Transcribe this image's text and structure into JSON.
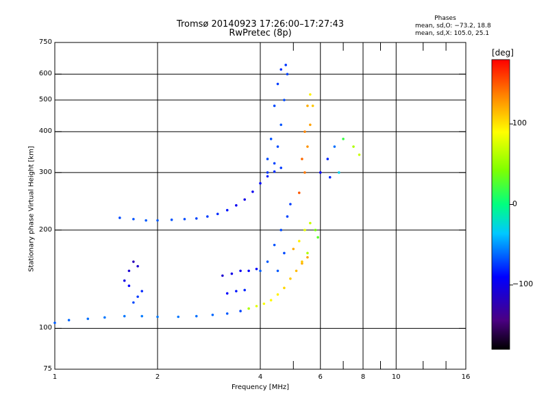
{
  "header": {
    "title_line1": "Tromsø 20140923 17:26:00–17:27:43",
    "title_line2": "RwPretec (8p)",
    "stats_heading": "Phases",
    "stats_line1": "mean, sd,O: −73.2, 18.8",
    "stats_line2": "mean, sd,X: 105.0, 25.1"
  },
  "colorbar": {
    "unit_label": "[deg]",
    "ticks": [
      "100",
      "0",
      "−100"
    ],
    "tick_values": [
      100,
      0,
      -100
    ],
    "range": [
      -180,
      180
    ],
    "colormap": "rainbow"
  },
  "chart_data": {
    "type": "scatter",
    "xlabel": "Frequency [MHz]",
    "ylabel": "Stationary phase Virtual Height [km]",
    "xscale": "log",
    "yscale": "log",
    "xlim": [
      1,
      16
    ],
    "ylim": [
      75,
      750
    ],
    "xticks": [
      "1",
      "2",
      "4",
      "6",
      "8",
      "10",
      "16"
    ],
    "xtick_values": [
      1,
      2,
      4,
      6,
      8,
      10,
      16
    ],
    "yticks": [
      "750",
      "600",
      "500",
      "400",
      "300",
      "200",
      "100",
      "75"
    ],
    "ytick_values": [
      750,
      600,
      500,
      400,
      300,
      200,
      100,
      75
    ],
    "grid_x": [
      2,
      4,
      6,
      8,
      10
    ],
    "grid_y": [
      100,
      200,
      300,
      400,
      500,
      600
    ],
    "minor_x": [
      5,
      7,
      9,
      12,
      14
    ],
    "minor_y": [
      75,
      750
    ],
    "traces": [
      {
        "name": "",
        "points": [
          [
            1.0,
            104
          ],
          [
            1.1,
            106
          ],
          [
            1.25,
            107
          ],
          [
            1.4,
            108
          ],
          [
            1.6,
            109
          ],
          [
            1.8,
            109
          ],
          [
            2.0,
            108.5
          ],
          [
            2.3,
            108.5
          ],
          [
            2.6,
            109
          ],
          [
            2.9,
            110
          ],
          [
            3.2,
            111
          ],
          [
            3.5,
            113
          ],
          [
            3.7,
            115
          ],
          [
            3.9,
            117
          ],
          [
            4.1,
            119
          ],
          [
            4.3,
            122
          ],
          [
            4.5,
            127
          ],
          [
            4.7,
            133
          ],
          [
            4.9,
            142
          ],
          [
            5.1,
            150
          ],
          [
            5.3,
            158
          ],
          [
            5.5,
            165
          ]
        ],
        "phase": [
          -65,
          -62,
          -60,
          -58,
          -58,
          -57,
          -57,
          -58,
          -60,
          -62,
          -66,
          -72,
          60,
          80,
          88,
          92,
          95,
          105,
          110,
          115,
          120,
          125
        ]
      },
      {
        "name": "",
        "points": [
          [
            1.55,
            218
          ],
          [
            1.7,
            216
          ],
          [
            1.85,
            214
          ],
          [
            2.0,
            214
          ],
          [
            2.2,
            215
          ],
          [
            2.4,
            216
          ],
          [
            2.6,
            217
          ],
          [
            2.8,
            220
          ],
          [
            3.0,
            224
          ],
          [
            3.2,
            230
          ],
          [
            3.4,
            238
          ],
          [
            3.6,
            248
          ],
          [
            3.8,
            262
          ],
          [
            4.0,
            278
          ],
          [
            4.2,
            292
          ],
          [
            4.4,
            302
          ],
          [
            4.6,
            310
          ]
        ],
        "phase": [
          -70,
          -68,
          -66,
          -66,
          -68,
          -70,
          -72,
          -74,
          -78,
          -85,
          -95,
          -100,
          -96,
          -88,
          -82,
          -78,
          -75
        ]
      },
      {
        "name": "",
        "points": [
          [
            4.2,
            300
          ],
          [
            4.4,
            320
          ],
          [
            4.5,
            360
          ],
          [
            4.6,
            420
          ],
          [
            4.7,
            500
          ],
          [
            4.8,
            600
          ],
          [
            4.75,
            640
          ],
          [
            4.6,
            620
          ],
          [
            4.5,
            560
          ],
          [
            4.4,
            480
          ],
          [
            4.3,
            380
          ],
          [
            4.2,
            330
          ]
        ],
        "phase": [
          -75,
          -72,
          -70,
          -68,
          -70,
          -72,
          -75,
          -78,
          -74,
          -70,
          -68,
          -70
        ]
      },
      {
        "name": "",
        "points": [
          [
            5.2,
            260
          ],
          [
            5.4,
            300
          ],
          [
            5.5,
            360
          ],
          [
            5.6,
            420
          ],
          [
            5.7,
            480
          ],
          [
            5.6,
            520
          ],
          [
            5.5,
            480
          ],
          [
            5.4,
            400
          ],
          [
            5.3,
            330
          ]
        ],
        "phase": [
          150,
          140,
          130,
          125,
          110,
          95,
          120,
          135,
          145
        ]
      },
      {
        "name": "",
        "points": [
          [
            6.0,
            300
          ],
          [
            6.3,
            330
          ],
          [
            6.6,
            360
          ],
          [
            7.0,
            380
          ],
          [
            7.5,
            360
          ],
          [
            7.8,
            340
          ],
          [
            6.8,
            300
          ],
          [
            6.4,
            290
          ]
        ],
        "phase": [
          -90,
          -80,
          -60,
          20,
          60,
          70,
          -30,
          -80
        ]
      },
      {
        "name": "",
        "points": [
          [
            4.0,
            150
          ],
          [
            4.2,
            160
          ],
          [
            4.4,
            180
          ],
          [
            4.6,
            200
          ],
          [
            4.8,
            220
          ],
          [
            4.9,
            240
          ],
          [
            4.7,
            170
          ],
          [
            4.5,
            150
          ]
        ],
        "phase": [
          -65,
          -66,
          -68,
          -70,
          -72,
          -74,
          -70,
          -66
        ]
      },
      {
        "name": "",
        "points": [
          [
            3.1,
            145
          ],
          [
            3.3,
            147
          ],
          [
            3.5,
            150
          ],
          [
            3.7,
            150
          ],
          [
            3.9,
            152
          ],
          [
            3.2,
            128
          ],
          [
            3.4,
            130
          ],
          [
            3.6,
            131
          ]
        ],
        "phase": [
          -110,
          -100,
          -95,
          -90,
          -90,
          -90,
          -85,
          -80
        ]
      },
      {
        "name": "",
        "points": [
          [
            1.6,
            140
          ],
          [
            1.65,
            150
          ],
          [
            1.7,
            160
          ],
          [
            1.75,
            155
          ],
          [
            1.8,
            130
          ],
          [
            1.75,
            125
          ],
          [
            1.7,
            120
          ],
          [
            1.65,
            135
          ]
        ],
        "phase": [
          -100,
          -110,
          -120,
          -110,
          -80,
          -75,
          -70,
          -90
        ]
      },
      {
        "name": "",
        "points": [
          [
            5.0,
            175
          ],
          [
            5.2,
            185
          ],
          [
            5.4,
            200
          ],
          [
            5.6,
            210
          ],
          [
            5.8,
            200
          ],
          [
            5.9,
            190
          ],
          [
            5.5,
            170
          ],
          [
            5.3,
            160
          ]
        ],
        "phase": [
          120,
          95,
          80,
          70,
          40,
          30,
          60,
          110
        ]
      }
    ]
  }
}
